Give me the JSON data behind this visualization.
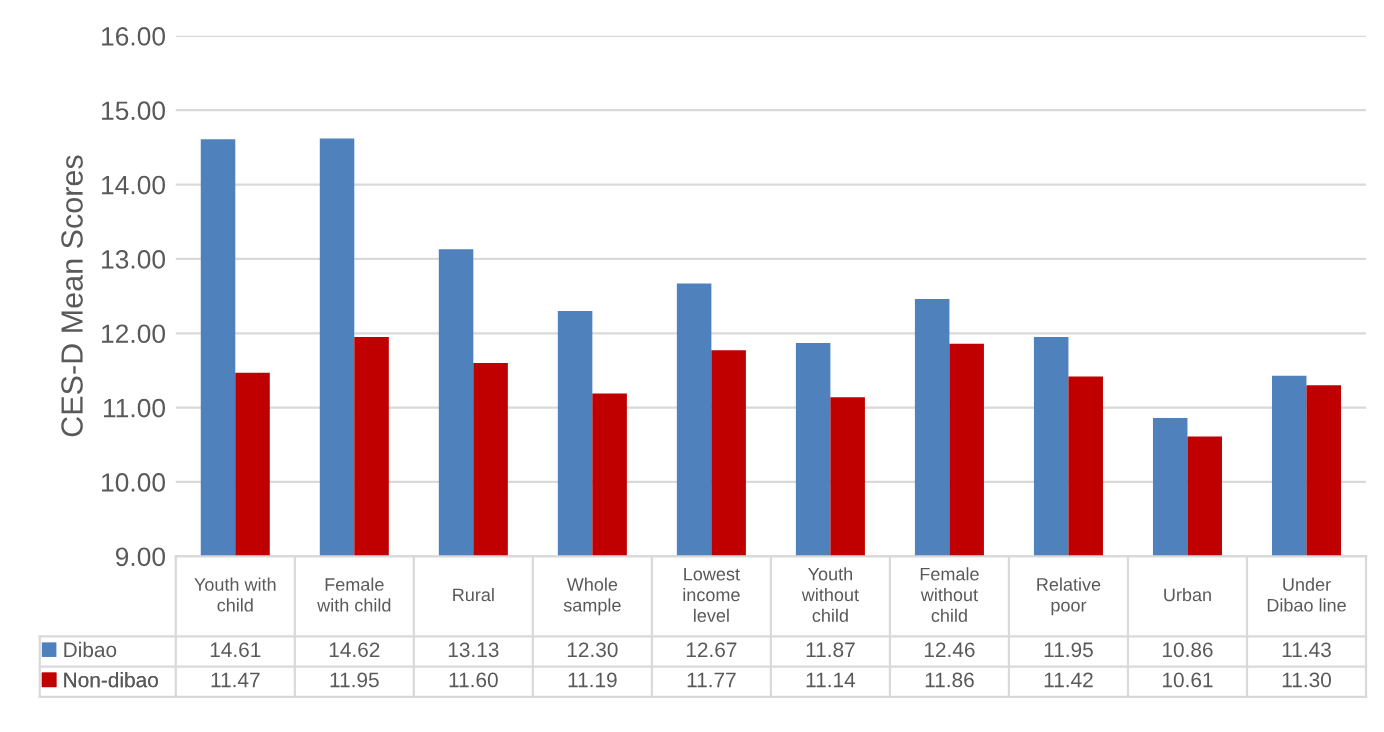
{
  "chart_data": {
    "type": "bar",
    "ylabel": "CES-D Mean Scores",
    "categories": [
      "Youth with\nchild",
      "Female\nwith child",
      "Rural",
      "Whole\nsample",
      "Lowest\nincome\nlevel",
      "Youth\nwithout\nchild",
      "Female\nwithout\nchild",
      "Relative\npoor",
      "Urban",
      "Under\nDibao line"
    ],
    "series": [
      {
        "name": "Dibao",
        "color": "#4f81bd",
        "values": [
          14.61,
          14.62,
          13.13,
          12.3,
          12.67,
          11.87,
          12.46,
          11.95,
          10.86,
          11.43
        ],
        "value_labels": [
          "14.61",
          "14.62",
          "13.13",
          "12.30",
          "12.67",
          "11.87",
          "12.46",
          "11.95",
          "10.86",
          "11.43"
        ]
      },
      {
        "name": "Non-dibao",
        "color": "#c00000",
        "values": [
          11.47,
          11.95,
          11.6,
          11.19,
          11.77,
          11.14,
          11.86,
          11.42,
          10.61,
          11.3
        ],
        "value_labels": [
          "11.47",
          "11.95",
          "11.60",
          "11.19",
          "11.77",
          "11.14",
          "11.86",
          "11.42",
          "10.61",
          "11.30"
        ]
      }
    ],
    "ylim": [
      9,
      16
    ],
    "yticks": [
      {
        "value": 9,
        "label": "9.00"
      },
      {
        "value": 10,
        "label": "10.00"
      },
      {
        "value": 11,
        "label": "11.00"
      },
      {
        "value": 12,
        "label": "12.00"
      },
      {
        "value": 13,
        "label": "13.00"
      },
      {
        "value": 14,
        "label": "14.00"
      },
      {
        "value": 15,
        "label": "15.00"
      },
      {
        "value": 16,
        "label": "16.00"
      }
    ],
    "grid": "y",
    "legend": "bottom"
  }
}
